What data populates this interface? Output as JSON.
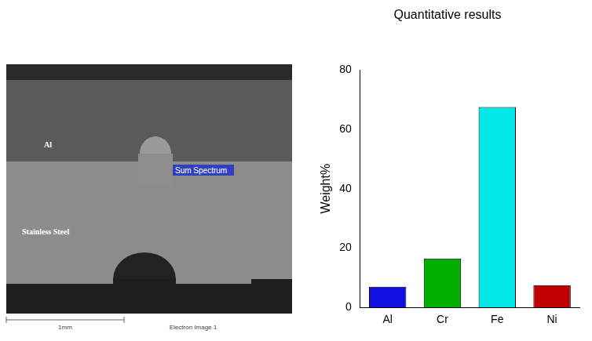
{
  "chart_data": {
    "type": "bar",
    "title": "Quantitative results",
    "y_label": "Weight%",
    "categories": [
      "Al",
      "Cr",
      "Fe",
      "Ni"
    ],
    "values": [
      7,
      16.5,
      67.5,
      7.5
    ],
    "colors": [
      "#1010e0",
      "#00b000",
      "#00e8e8",
      "#c00000"
    ],
    "ylim": [
      0,
      80
    ],
    "yticks": [
      0,
      20,
      40,
      60,
      80
    ],
    "grid": false
  },
  "image": {
    "top_layer": "Al",
    "bottom_layer": "Stainless Steel",
    "spectrum": "Sum Spectrum",
    "scale_bar": "1mm",
    "caption": "Electron Image 1"
  }
}
